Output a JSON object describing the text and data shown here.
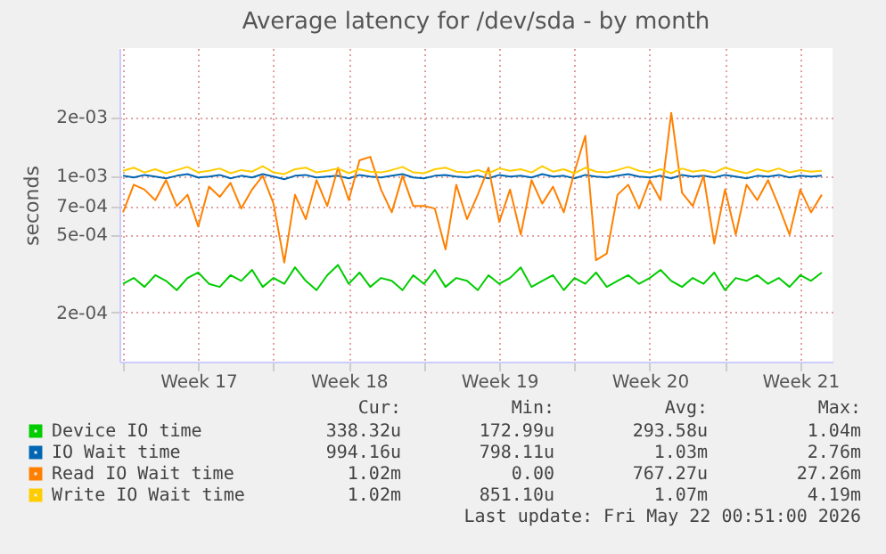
{
  "chart_data": {
    "type": "line",
    "title": "Average latency for /dev/sda - by month",
    "ylabel": "seconds",
    "log": "y",
    "grid": true,
    "legend": "bottom",
    "line_style": "solid",
    "ylim": [
      0.000112,
      0.0045
    ],
    "yticks": [
      {
        "value": 0.0002,
        "label": "2e-04"
      },
      {
        "value": 0.0005,
        "label": "5e-04"
      },
      {
        "value": 0.0007,
        "label": "7e-04"
      },
      {
        "value": 0.001,
        "label": "1e-03"
      },
      {
        "value": 0.002,
        "label": "2e-03"
      }
    ],
    "xlim": [
      "2026-04-19T20:00",
      "2026-05-23T00:00"
    ],
    "xticks": [
      {
        "value": "2026-04-20",
        "label": null
      },
      {
        "value": "2026-04-23T12:00",
        "label": "Week 17"
      },
      {
        "value": "2026-04-27",
        "label": null
      },
      {
        "value": "2026-04-30T12:00",
        "label": "Week 18"
      },
      {
        "value": "2026-05-04",
        "label": null
      },
      {
        "value": "2026-05-07T12:00",
        "label": "Week 19"
      },
      {
        "value": "2026-05-11",
        "label": null
      },
      {
        "value": "2026-05-14T12:00",
        "label": "Week 20"
      },
      {
        "value": "2026-05-18",
        "label": null
      },
      {
        "value": "2026-05-21T12:00",
        "label": "Week 21"
      }
    ],
    "x": [
      "2026-04-20T00:00",
      "2026-04-20T12:00",
      "2026-04-21T00:00",
      "2026-04-21T12:00",
      "2026-04-22T00:00",
      "2026-04-22T12:00",
      "2026-04-23T00:00",
      "2026-04-23T12:00",
      "2026-04-24T00:00",
      "2026-04-24T12:00",
      "2026-04-25T00:00",
      "2026-04-25T12:00",
      "2026-04-26T00:00",
      "2026-04-26T12:00",
      "2026-04-27T00:00",
      "2026-04-27T12:00",
      "2026-04-28T00:00",
      "2026-04-28T12:00",
      "2026-04-29T00:00",
      "2026-04-29T12:00",
      "2026-04-30T00:00",
      "2026-04-30T12:00",
      "2026-05-01T00:00",
      "2026-05-01T12:00",
      "2026-05-02T00:00",
      "2026-05-02T12:00",
      "2026-05-03T00:00",
      "2026-05-03T12:00",
      "2026-05-04T00:00",
      "2026-05-04T12:00",
      "2026-05-05T00:00",
      "2026-05-05T12:00",
      "2026-05-06T00:00",
      "2026-05-06T12:00",
      "2026-05-07T00:00",
      "2026-05-07T12:00",
      "2026-05-08T00:00",
      "2026-05-08T12:00",
      "2026-05-09T00:00",
      "2026-05-09T12:00",
      "2026-05-10T00:00",
      "2026-05-10T12:00",
      "2026-05-11T00:00",
      "2026-05-11T12:00",
      "2026-05-12T00:00",
      "2026-05-12T12:00",
      "2026-05-13T00:00",
      "2026-05-13T12:00",
      "2026-05-14T00:00",
      "2026-05-14T12:00",
      "2026-05-15T00:00",
      "2026-05-15T12:00",
      "2026-05-16T00:00",
      "2026-05-16T12:00",
      "2026-05-17T00:00",
      "2026-05-17T12:00",
      "2026-05-18T00:00",
      "2026-05-18T12:00",
      "2026-05-19T00:00",
      "2026-05-19T12:00",
      "2026-05-20T00:00",
      "2026-05-20T12:00",
      "2026-05-21T00:00",
      "2026-05-21T12:00",
      "2026-05-22T00:00",
      "2026-05-22T12:00"
    ],
    "series": [
      {
        "name": "Device IO time",
        "color": "#00cc00",
        "values": [
          0.00028,
          0.0003,
          0.00027,
          0.00031,
          0.00029,
          0.00026,
          0.0003,
          0.00032,
          0.00028,
          0.00027,
          0.00031,
          0.00029,
          0.00033,
          0.00027,
          0.0003,
          0.00028,
          0.00034,
          0.00029,
          0.00026,
          0.00031,
          0.00035,
          0.00028,
          0.00032,
          0.00027,
          0.0003,
          0.00029,
          0.00026,
          0.00031,
          0.00028,
          0.00033,
          0.00027,
          0.0003,
          0.00029,
          0.00026,
          0.00031,
          0.00028,
          0.0003,
          0.00034,
          0.00027,
          0.00029,
          0.00031,
          0.00026,
          0.0003,
          0.00028,
          0.00032,
          0.00027,
          0.00029,
          0.00031,
          0.00028,
          0.0003,
          0.00033,
          0.00029,
          0.00027,
          0.0003,
          0.00028,
          0.00032,
          0.00026,
          0.0003,
          0.00029,
          0.00031,
          0.00028,
          0.0003,
          0.00027,
          0.00031,
          0.00029,
          0.00032
        ]
      },
      {
        "name": "IO Wait time",
        "color": "#0066b3",
        "values": [
          0.001,
          0.00098,
          0.00101,
          0.00099,
          0.00097,
          0.001,
          0.00102,
          0.00098,
          0.00099,
          0.00101,
          0.00097,
          0.001,
          0.00098,
          0.00102,
          0.00099,
          0.00096,
          0.001,
          0.00101,
          0.00098,
          0.00099,
          0.001,
          0.00097,
          0.00101,
          0.00099,
          0.00098,
          0.001,
          0.00102,
          0.00098,
          0.00097,
          0.001,
          0.00101,
          0.00099,
          0.00098,
          0.001,
          0.00097,
          0.00101,
          0.00099,
          0.001,
          0.00098,
          0.00102,
          0.00099,
          0.001,
          0.00097,
          0.00101,
          0.00099,
          0.00098,
          0.001,
          0.00102,
          0.00099,
          0.00098,
          0.001,
          0.00097,
          0.00101,
          0.00099,
          0.001,
          0.00098,
          0.00101,
          0.00099,
          0.00097,
          0.001,
          0.00099,
          0.00101,
          0.00098,
          0.001,
          0.00099,
          0.001
        ]
      },
      {
        "name": "Read IO Wait time",
        "color": "#ff8000",
        "values": [
          0.00065,
          0.0009,
          0.00085,
          0.00075,
          0.00095,
          0.0007,
          0.0008,
          0.00055,
          0.00088,
          0.00078,
          0.00092,
          0.00068,
          0.00085,
          0.001,
          0.00072,
          0.00036,
          0.0008,
          0.0006,
          0.00095,
          0.0007,
          0.0011,
          0.00075,
          0.0012,
          0.00125,
          0.00085,
          0.00065,
          0.001,
          0.0007,
          0.0007,
          0.00068,
          0.00042,
          0.0009,
          0.0006,
          0.0008,
          0.0011,
          0.00058,
          0.00085,
          0.0005,
          0.00095,
          0.00072,
          0.00088,
          0.00065,
          0.00105,
          0.0016,
          0.00037,
          0.0004,
          0.0008,
          0.0009,
          0.00068,
          0.00095,
          0.00075,
          0.0021,
          0.00082,
          0.0007,
          0.001,
          0.00045,
          0.00085,
          0.0005,
          0.0009,
          0.00075,
          0.00095,
          0.0007,
          0.0005,
          0.00085,
          0.00065,
          0.0008
        ]
      },
      {
        "name": "Write IO Wait time",
        "color": "#ffcc00",
        "values": [
          0.00106,
          0.0011,
          0.00104,
          0.00108,
          0.00103,
          0.00107,
          0.00111,
          0.00104,
          0.00106,
          0.00109,
          0.00103,
          0.00107,
          0.00105,
          0.00112,
          0.00104,
          0.00102,
          0.00108,
          0.0011,
          0.00104,
          0.00106,
          0.00109,
          0.00103,
          0.00108,
          0.00105,
          0.00104,
          0.00107,
          0.00111,
          0.00104,
          0.00103,
          0.00108,
          0.0011,
          0.00105,
          0.00104,
          0.00107,
          0.00103,
          0.00109,
          0.00106,
          0.00108,
          0.00104,
          0.00112,
          0.00105,
          0.00108,
          0.00103,
          0.0011,
          0.00105,
          0.00104,
          0.00107,
          0.00111,
          0.00106,
          0.00104,
          0.00108,
          0.00103,
          0.00109,
          0.00105,
          0.00107,
          0.00104,
          0.0011,
          0.00106,
          0.00103,
          0.00108,
          0.00105,
          0.00109,
          0.00104,
          0.00107,
          0.00105,
          0.00106
        ]
      }
    ],
    "annotations": [
      "Cur:",
      "Min:",
      "Avg:",
      "Max:",
      "338.32u",
      "172.99u",
      "293.58u",
      "1.04m",
      "994.16u",
      "798.11u",
      "1.03m",
      "2.76m",
      "1.02m",
      "0.00",
      "767.27u",
      "27.26m",
      "1.02m",
      "851.10u",
      "1.07m",
      "4.19m",
      "Last update: Fri May 22 00:51:00 2026"
    ]
  }
}
